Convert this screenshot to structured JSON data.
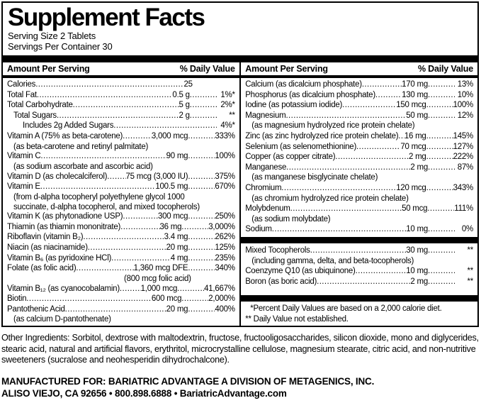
{
  "colors": {
    "ink": "#000000",
    "paper": "#ffffff"
  },
  "label": {
    "title": "Supplement Facts",
    "serving_size": "Serving Size 2 Tablets",
    "servings_per_container": "Servings Per Container 30",
    "column_headers": {
      "amount": "Amount Per Serving",
      "daily_value": "% Daily Value"
    },
    "columns": [
      {
        "rows": [
          {
            "type": "item",
            "label": "Calories",
            "amount": "25",
            "percent": ""
          },
          {
            "type": "item",
            "label": "Total Fat",
            "amount": "0.5 g",
            "percent": "1%*"
          },
          {
            "type": "item",
            "label": "Total Carbohydrate",
            "amount": "5 g",
            "percent": "2%*"
          },
          {
            "type": "item",
            "label": "Total Sugars",
            "amount": "2 g",
            "percent": "**",
            "indent": 1
          },
          {
            "type": "item",
            "label": "Includes 2g Added Sugars",
            "amount": "",
            "percent": "4%*",
            "indent": 2
          },
          {
            "type": "item",
            "label": "Vitamin A (75% as beta-carotene)",
            "amount": "3,000 mcg",
            "percent": "333%"
          },
          {
            "type": "note",
            "text": "(as beta-carotene and retinyl palmitate)"
          },
          {
            "type": "item",
            "label": "Vitamin C",
            "amount": "90 mg",
            "percent": "100%"
          },
          {
            "type": "note",
            "text": "(as sodium ascorbate and ascorbic acid)"
          },
          {
            "type": "item",
            "label": "Vitamin D (as cholecalciferol)",
            "amount": "75 mcg (3,000 IU)",
            "percent": "375%"
          },
          {
            "type": "item",
            "label": "Vitamin E",
            "amount": "100.5 mg",
            "percent": "670%"
          },
          {
            "type": "note",
            "text": "(from d-alpha tocopheryl polyethylene glycol 1000"
          },
          {
            "type": "note",
            "text": "succinate, d-alpha tocopherol, and mixed tocopherols)"
          },
          {
            "type": "item",
            "label": "Vitamin K (as phytonadione USP)",
            "amount": "300 mcg",
            "percent": "250%"
          },
          {
            "type": "item",
            "label": "Thiamin (as thiamin mononitrate)",
            "amount": "36 mg",
            "percent": "3,000%"
          },
          {
            "type": "item",
            "label": "Riboflavin (vitamin B₂)",
            "amount": "3.4 mg",
            "percent": "262%"
          },
          {
            "type": "item",
            "label": "Niacin (as niacinamide)",
            "amount": "20 mg",
            "percent": "125%"
          },
          {
            "type": "item",
            "label": "Vitamin B₆ (as pyridoxine HCl)",
            "amount": "4 mg",
            "percent": "235%"
          },
          {
            "type": "item",
            "label": "Folate (as folic acid)",
            "amount": "1,360 mcg DFE",
            "percent": "340%"
          },
          {
            "type": "note",
            "text": "(800 mcg folic acid)",
            "align": "right"
          },
          {
            "type": "item",
            "label": "Vitamin B₁₂ (as cyanocobalamin)",
            "amount": "1,000 mcg",
            "percent": "41,667%"
          },
          {
            "type": "item",
            "label": "Biotin",
            "amount": "600 mcg",
            "percent": "2,000%"
          },
          {
            "type": "item",
            "label": "Pantothenic Acid",
            "amount": "20 mg",
            "percent": "400%"
          },
          {
            "type": "note",
            "text": "(as calcium D-pantothenate)"
          }
        ]
      },
      {
        "rows": [
          {
            "type": "item",
            "label": "Calcium (as dicalcium phosphate)",
            "amount": "170 mg",
            "percent": "13%"
          },
          {
            "type": "item",
            "label": "Phosphorus (as dicalcium phosphate)",
            "amount": "130 mg",
            "percent": "10%"
          },
          {
            "type": "item",
            "label": "Iodine (as potassium iodide)",
            "amount": "150 mcg",
            "percent": "100%"
          },
          {
            "type": "item",
            "label": "Magnesium",
            "amount": "50 mg",
            "percent": "12%"
          },
          {
            "type": "note",
            "text": "(as magnesium hydrolyzed rice protein chelate)"
          },
          {
            "type": "item",
            "label": "Zinc (as zinc hydrolyzed rice protein chelate)",
            "amount": "16 mg",
            "percent": "145%"
          },
          {
            "type": "item",
            "label": "Selenium (as selenomethionine)",
            "amount": "70 mcg",
            "percent": "127%"
          },
          {
            "type": "item",
            "label": "Copper (as copper citrate)",
            "amount": "2 mg",
            "percent": "222%"
          },
          {
            "type": "item",
            "label": "Manganese",
            "amount": "2 mg",
            "percent": "87%"
          },
          {
            "type": "note",
            "text": "(as manganese bisglycinate chelate)"
          },
          {
            "type": "item",
            "label": "Chromium",
            "amount": "120 mcg",
            "percent": "343%"
          },
          {
            "type": "note",
            "text": "(as chromium hydrolyzed rice protein chelate)"
          },
          {
            "type": "item",
            "label": "Molybdenum",
            "amount": "50 mcg",
            "percent": "111%"
          },
          {
            "type": "note",
            "text": "(as sodium molybdate)"
          },
          {
            "type": "item",
            "label": "Sodium",
            "amount": "10 mg",
            "percent": "0%"
          },
          {
            "type": "bar"
          },
          {
            "type": "item",
            "label": "Mixed Tocopherols",
            "amount": "30 mg",
            "percent": "**"
          },
          {
            "type": "note",
            "text": "(including gamma, delta, and beta-tocopherols)"
          },
          {
            "type": "item",
            "label": "Coenzyme Q10 (as ubiquinone)",
            "amount": "10 mg",
            "percent": "**"
          },
          {
            "type": "item",
            "label": "Boron (as boric acid)",
            "amount": "2 mg",
            "percent": "**"
          },
          {
            "type": "bar",
            "push": true
          },
          {
            "type": "footnote",
            "text": "*Percent Daily Values are based on a 2,000 calorie diet.",
            "indent": 1
          },
          {
            "type": "footnote",
            "text": "** Daily Value not established.",
            "indent": 0
          }
        ]
      }
    ]
  },
  "footer": {
    "other_ingredients": "Other Ingredients: Sorbitol, dextrose with maltodextrin, fructose, fructooligosaccharides, silicon dioxide, mono and diglycerides, stearic acid, natural and artificial flavors, erythritol, microcrystalline cellulose, magnesium stearate, citric acid, and non-nutritive sweeteners (sucralose and neohesperidin dihydrochalcone).",
    "manufactured_line1": "MANUFACTURED FOR: BARIATRIC ADVANTAGE A DIVISION OF METAGENICS, INC.",
    "manufactured_line2": "ALISO VIEJO, CA 92656 • 800.898.6888 • BariatricAdvantage.com"
  }
}
